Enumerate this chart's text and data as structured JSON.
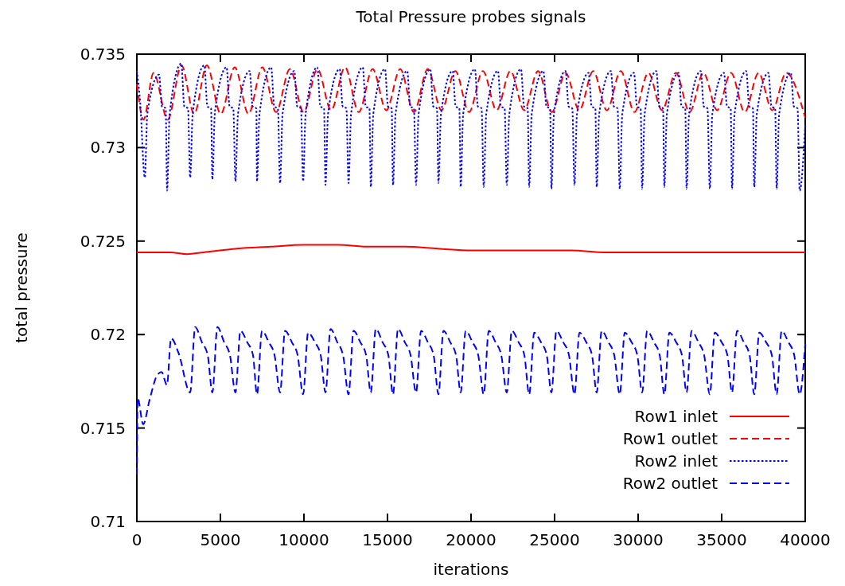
{
  "chart_data": {
    "type": "line",
    "title": "Total Pressure probes signals",
    "xlabel": "iterations",
    "ylabel": "total pressure",
    "xlim": [
      0,
      40000
    ],
    "xticks": [
      0,
      5000,
      10000,
      15000,
      20000,
      25000,
      30000,
      35000,
      40000
    ],
    "ylim": [
      0.71,
      0.735
    ],
    "yticks": [
      0.71,
      0.715,
      0.72,
      0.725,
      0.73,
      0.735
    ],
    "grid": false,
    "legend": "bottom right",
    "series": [
      {
        "name": "Row1 inlet",
        "color": "#ff0000",
        "line_style": "solid",
        "x": [
          0,
          2000,
          3000,
          4000,
          6000,
          8000,
          10000,
          12000,
          14000,
          16000,
          18000,
          20000,
          22000,
          24000,
          26000,
          28000,
          30000,
          32000,
          34000,
          36000,
          38000,
          40000
        ],
        "values": [
          0.7244,
          0.7244,
          0.7243,
          0.7244,
          0.7246,
          0.7247,
          0.7248,
          0.7248,
          0.7247,
          0.7247,
          0.7246,
          0.7245,
          0.7245,
          0.7245,
          0.7245,
          0.7244,
          0.7244,
          0.7244,
          0.7244,
          0.7244,
          0.7244,
          0.7244
        ]
      },
      {
        "name": "Row1 outlet",
        "color": "#ff0000",
        "line_style": "dashed",
        "x": [
          0,
          400,
          1000,
          1850,
          2670,
          3430,
          4190,
          5020,
          5860,
          6680,
          7510,
          8330,
          9160,
          9980,
          10810,
          11630,
          12460,
          13280,
          14110,
          14930,
          15760,
          16580,
          17410,
          18230,
          19060,
          19880,
          20710,
          21530,
          22360,
          23180,
          24010,
          24830,
          25660,
          26480,
          27310,
          28130,
          28960,
          29780,
          30610,
          31430,
          32260,
          33080,
          33910,
          34730,
          35560,
          36380,
          37210,
          38030,
          38860,
          40000
        ],
        "values": [
          0.7334,
          0.7315,
          0.734,
          0.7315,
          0.7344,
          0.7318,
          0.7344,
          0.7318,
          0.7343,
          0.7318,
          0.7343,
          0.7319,
          0.7342,
          0.7319,
          0.7342,
          0.732,
          0.7343,
          0.7319,
          0.7342,
          0.732,
          0.7342,
          0.7319,
          0.7342,
          0.732,
          0.7341,
          0.7319,
          0.7341,
          0.732,
          0.7341,
          0.732,
          0.7341,
          0.7319,
          0.734,
          0.732,
          0.7341,
          0.732,
          0.7341,
          0.7319,
          0.734,
          0.732,
          0.734,
          0.7319,
          0.734,
          0.732,
          0.734,
          0.7319,
          0.734,
          0.732,
          0.734,
          0.7316
        ]
      },
      {
        "name": "Row2 inlet",
        "color": "#0000ff",
        "line_style": "dotted",
        "x": [
          0,
          200,
          476,
          626,
          1326,
          1506,
          1726,
          1810,
          1960,
          2660,
          2840,
          3060,
          3190,
          3340,
          4040,
          4220,
          4440,
          4520,
          4670,
          5370,
          5550,
          5770,
          5900,
          6050,
          6750,
          6930,
          7150,
          7190,
          7340,
          8040,
          8220,
          8440,
          8570,
          8720,
          9420,
          9600,
          9820,
          9950,
          10100,
          10800,
          10980,
          11200,
          11290,
          11440,
          12140,
          12320,
          12540,
          12670,
          12820,
          13520,
          13700,
          13920,
          14000,
          14150,
          14850,
          15030,
          15250,
          15330,
          15480,
          16180,
          16360,
          16580,
          16710,
          16860,
          17560,
          17740,
          17960,
          18050,
          18200,
          18900,
          19080,
          19300,
          19380,
          19530,
          20230,
          20410,
          20630,
          20760,
          20910,
          21610,
          21790,
          22010,
          22140,
          22290,
          22990,
          23170,
          23390,
          23480,
          23630,
          24330,
          24510,
          24730,
          24810,
          24960,
          25660,
          25840,
          26060,
          26190,
          26340,
          27040,
          27220,
          27440,
          27520,
          27670,
          28370,
          28550,
          28770,
          28900,
          29050,
          29750,
          29930,
          30150,
          30240,
          30390,
          31090,
          31270,
          31490,
          31570,
          31720,
          32420,
          32600,
          32820,
          32900,
          33050,
          33750,
          33930,
          34150,
          34290,
          34440,
          35140,
          35320,
          35540,
          35620,
          35770,
          36470,
          36650,
          36870,
          36950,
          37100,
          37800,
          37980,
          38200,
          38290,
          38440,
          39140,
          39320,
          39540,
          39670,
          40000
        ],
        "values": [
          0.7341,
          0.7324,
          0.7284,
          0.7318,
          0.7339,
          0.7322,
          0.7321,
          0.7277,
          0.7318,
          0.7345,
          0.7322,
          0.7321,
          0.7284,
          0.7318,
          0.7344,
          0.7322,
          0.7321,
          0.7283,
          0.7319,
          0.7343,
          0.7322,
          0.7321,
          0.7282,
          0.7318,
          0.7341,
          0.7322,
          0.7321,
          0.7282,
          0.7318,
          0.7343,
          0.7322,
          0.7321,
          0.7281,
          0.7318,
          0.7341,
          0.7322,
          0.7321,
          0.7282,
          0.7318,
          0.7343,
          0.7322,
          0.7321,
          0.728,
          0.7318,
          0.7342,
          0.7322,
          0.7321,
          0.7281,
          0.7318,
          0.7343,
          0.7322,
          0.7321,
          0.7279,
          0.7318,
          0.7342,
          0.7322,
          0.7321,
          0.728,
          0.7318,
          0.7341,
          0.7322,
          0.7321,
          0.728,
          0.7318,
          0.7342,
          0.7322,
          0.7321,
          0.7281,
          0.7318,
          0.7341,
          0.7322,
          0.7321,
          0.7279,
          0.7318,
          0.7342,
          0.7322,
          0.7321,
          0.7279,
          0.7318,
          0.7341,
          0.7322,
          0.7321,
          0.728,
          0.7318,
          0.7342,
          0.7322,
          0.7321,
          0.7279,
          0.7318,
          0.7341,
          0.7322,
          0.7321,
          0.7278,
          0.7318,
          0.7341,
          0.7322,
          0.7321,
          0.728,
          0.7318,
          0.734,
          0.7322,
          0.7321,
          0.7279,
          0.7318,
          0.7341,
          0.7322,
          0.7321,
          0.7278,
          0.7318,
          0.734,
          0.7322,
          0.7321,
          0.7278,
          0.7318,
          0.7341,
          0.7322,
          0.7321,
          0.7279,
          0.7318,
          0.734,
          0.7322,
          0.7321,
          0.7278,
          0.7318,
          0.7341,
          0.7322,
          0.7321,
          0.7278,
          0.7318,
          0.734,
          0.7322,
          0.7321,
          0.7278,
          0.7318,
          0.7341,
          0.7322,
          0.7321,
          0.7279,
          0.7318,
          0.734,
          0.7322,
          0.7321,
          0.7278,
          0.7318,
          0.734,
          0.7322,
          0.7321,
          0.7277,
          0.7312
        ]
      },
      {
        "name": "Row2 outlet",
        "color": "#0000ff",
        "line_style": "dashed",
        "x": [
          0,
          50,
          380,
          760,
          1200,
          1480,
          1800,
          2050,
          2500,
          3190,
          3490,
          3890,
          4240,
          4520,
          4820,
          5220,
          5570,
          5900,
          6200,
          6600,
          6950,
          7190,
          7490,
          7890,
          8240,
          8570,
          8870,
          9270,
          9620,
          9950,
          10250,
          10650,
          11000,
          11290,
          11590,
          11990,
          12340,
          12670,
          12970,
          13370,
          13720,
          14000,
          14300,
          14700,
          15050,
          15330,
          15630,
          16030,
          16380,
          16710,
          17010,
          17410,
          17760,
          18050,
          18350,
          18750,
          19100,
          19380,
          19680,
          20080,
          20430,
          20760,
          21060,
          21460,
          21810,
          22140,
          22440,
          22840,
          23190,
          23480,
          23780,
          24180,
          24530,
          24810,
          25110,
          25510,
          25860,
          26190,
          26490,
          26890,
          27240,
          27520,
          27820,
          28220,
          28570,
          28900,
          29200,
          29600,
          29950,
          30240,
          30540,
          30940,
          31290,
          31570,
          31870,
          32270,
          32620,
          32900,
          33200,
          33600,
          33950,
          34290,
          34590,
          34990,
          35340,
          35620,
          35920,
          36320,
          36670,
          36950,
          37250,
          37650,
          38000,
          38290,
          38590,
          38990,
          39340,
          39670,
          40000
        ],
        "values": [
          0.7125,
          0.7166,
          0.7152,
          0.7165,
          0.7178,
          0.718,
          0.7173,
          0.7198,
          0.719,
          0.7169,
          0.7204,
          0.7196,
          0.7189,
          0.7169,
          0.7204,
          0.7196,
          0.7189,
          0.7169,
          0.7202,
          0.7196,
          0.7189,
          0.7168,
          0.7202,
          0.7196,
          0.7189,
          0.7169,
          0.7202,
          0.7196,
          0.7189,
          0.7168,
          0.7201,
          0.7196,
          0.7189,
          0.7169,
          0.7203,
          0.7196,
          0.7189,
          0.7168,
          0.7202,
          0.7196,
          0.7189,
          0.7169,
          0.7203,
          0.7196,
          0.7189,
          0.7168,
          0.7203,
          0.7196,
          0.7189,
          0.7169,
          0.7202,
          0.7196,
          0.7189,
          0.7168,
          0.7202,
          0.7196,
          0.7189,
          0.7169,
          0.7202,
          0.7196,
          0.7189,
          0.7168,
          0.7202,
          0.7196,
          0.7189,
          0.7169,
          0.7202,
          0.7196,
          0.7189,
          0.7168,
          0.7201,
          0.7196,
          0.7189,
          0.7169,
          0.7202,
          0.7196,
          0.7189,
          0.7168,
          0.7201,
          0.7196,
          0.7189,
          0.7169,
          0.7202,
          0.7196,
          0.7189,
          0.7168,
          0.7201,
          0.7196,
          0.7189,
          0.7169,
          0.7202,
          0.7196,
          0.7189,
          0.7168,
          0.7201,
          0.7196,
          0.7189,
          0.7169,
          0.7202,
          0.7196,
          0.7189,
          0.7168,
          0.7201,
          0.7196,
          0.7189,
          0.7169,
          0.7202,
          0.7196,
          0.7189,
          0.7168,
          0.7201,
          0.7196,
          0.7189,
          0.7168,
          0.7202,
          0.7196,
          0.7189,
          0.7168,
          0.7195
        ]
      }
    ]
  }
}
